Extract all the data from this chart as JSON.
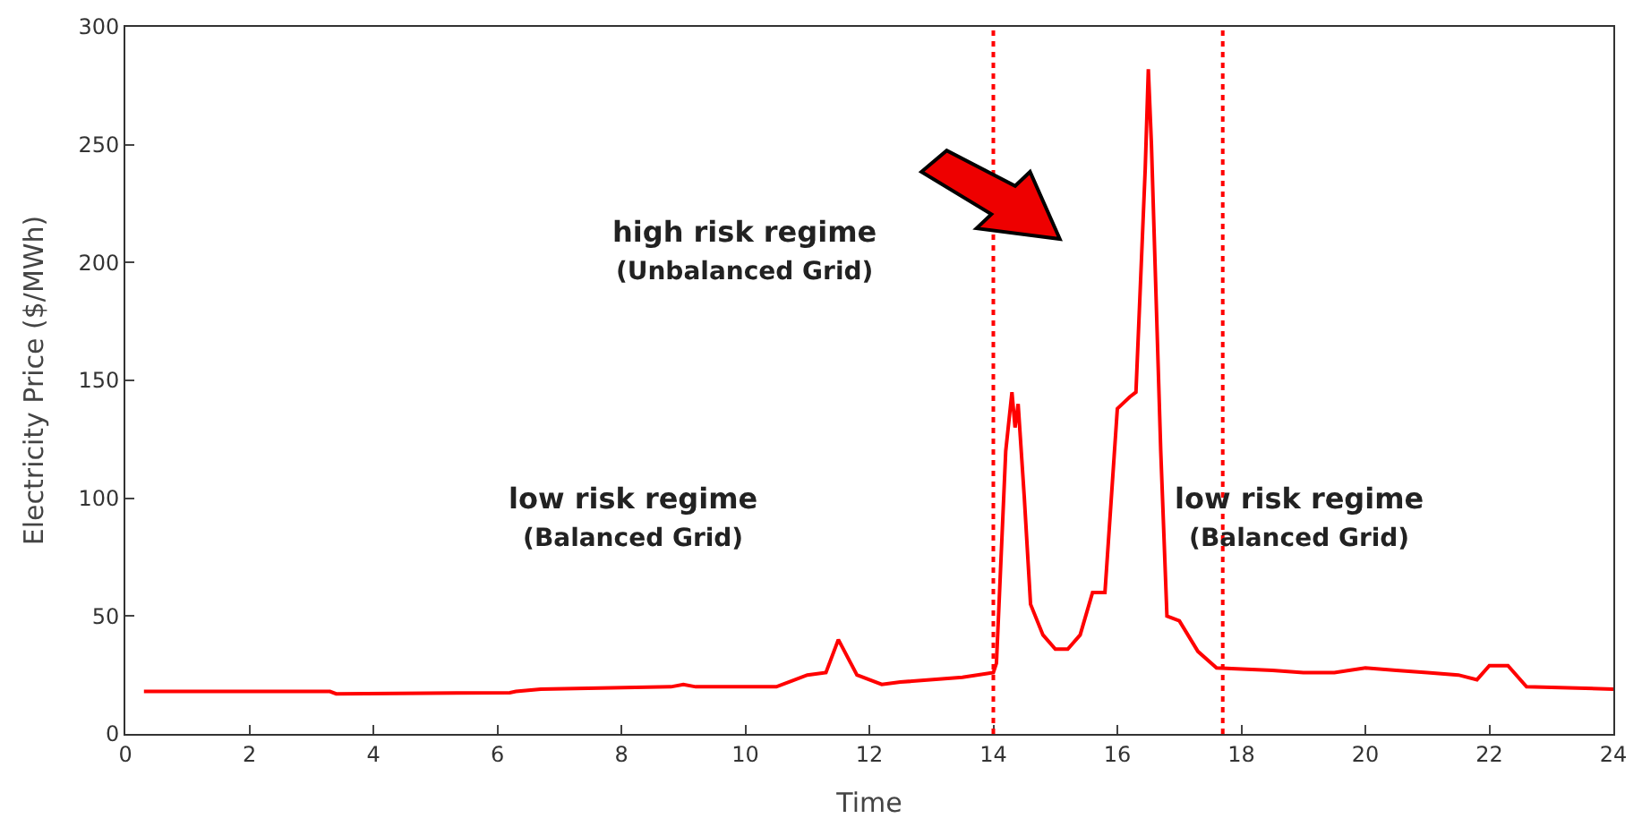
{
  "chart_data": {
    "type": "line",
    "xlabel": "Time",
    "ylabel": "Electricity Price ($/MWh)",
    "xlim": [
      0,
      24
    ],
    "xticks": [
      0,
      2,
      4,
      6,
      8,
      10,
      12,
      14,
      16,
      18,
      20,
      22,
      24
    ],
    "ylim": [
      0,
      300
    ],
    "yticks": [
      0,
      50,
      100,
      150,
      200,
      250,
      300
    ],
    "legend": false,
    "marker": "none",
    "line_style": "solid",
    "series": [
      {
        "color": "#ff0000",
        "x": [
          0.3,
          3.3,
          3.4,
          6.2,
          6.3,
          6.7,
          8.8,
          9,
          9.2,
          10.5,
          11,
          11.3,
          11.5,
          11.8,
          12.2,
          12.5,
          13.5,
          14,
          14.05,
          14.1,
          14.2,
          14.3,
          14.35,
          14.4,
          14.5,
          14.6,
          14.8,
          15,
          15.2,
          15.4,
          15.6,
          15.8,
          16,
          16.2,
          16.3,
          16.45,
          16.5,
          16.55,
          16.7,
          16.8,
          17,
          17.3,
          17.6,
          18.5,
          19,
          19.5,
          20,
          20.5,
          21,
          21.5,
          21.8,
          22,
          22.3,
          22.6,
          24
        ],
        "values": [
          18,
          18,
          17,
          17.5,
          18,
          19,
          20,
          21,
          20,
          20,
          25,
          26,
          40,
          25,
          21,
          22,
          24,
          26,
          30,
          60,
          120,
          145,
          130,
          140,
          100,
          55,
          42,
          36,
          36,
          42,
          60,
          60,
          138,
          143,
          145,
          240,
          282,
          250,
          120,
          50,
          48,
          35,
          28,
          27,
          26,
          26,
          28,
          27,
          26,
          25,
          23,
          29,
          29,
          20,
          19
        ]
      }
    ],
    "ref_lines": [
      {
        "axis": "x",
        "value": 14,
        "color": "#ff0000",
        "line_style": "dotted"
      },
      {
        "axis": "x",
        "value": 17.7,
        "color": "#ff0000",
        "line_style": "dotted"
      }
    ],
    "annotations": [
      "high risk regime\n(Unbalanced Grid)",
      "low risk regime\n(Balanced Grid)",
      "low risk regime\n(Balanced Grid)"
    ]
  }
}
